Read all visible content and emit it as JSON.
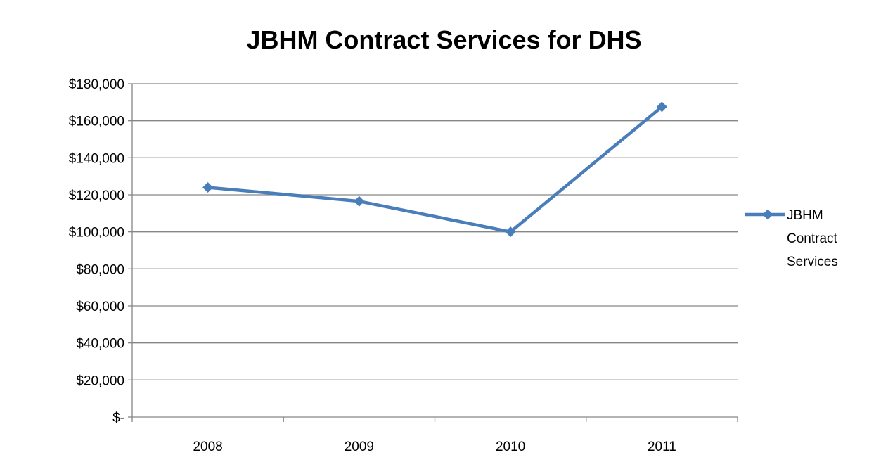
{
  "chart_data": {
    "type": "line",
    "title": "JBHM Contract Services for DHS",
    "xlabel": "",
    "ylabel": "",
    "categories": [
      "2008",
      "2009",
      "2010",
      "2011"
    ],
    "ylim": [
      0,
      180000
    ],
    "yticks": [
      0,
      20000,
      40000,
      60000,
      80000,
      100000,
      120000,
      140000,
      160000,
      180000
    ],
    "ytick_labels": [
      "$-",
      "$20,000",
      "$40,000",
      "$60,000",
      "$80,000",
      "$100,000",
      "$120,000",
      "$140,000",
      "$160,000",
      "$180,000"
    ],
    "grid": true,
    "legend_position": "right",
    "series": [
      {
        "name": "JBHM Contract Services",
        "legend_lines": [
          "JBHM",
          "Contract",
          "Services"
        ],
        "values": [
          124000,
          116500,
          100000,
          167500
        ],
        "color": "#4a7ebb",
        "marker": "diamond"
      }
    ]
  }
}
